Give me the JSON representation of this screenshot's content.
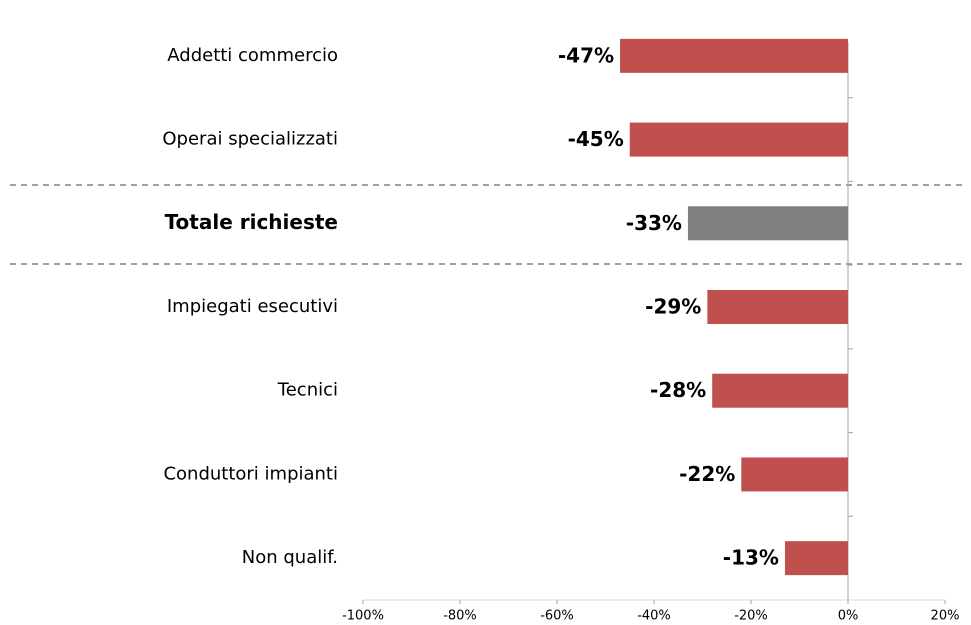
{
  "chart_data": {
    "type": "hbar",
    "categories": [
      "Addetti commercio",
      "Operai specializzati",
      "Totale richieste",
      "Impiegati esecutivi",
      "Tecnici",
      "Conduttori impianti",
      "Non qualif."
    ],
    "values": [
      -47,
      -45,
      -33,
      -29,
      -28,
      -22,
      -13
    ],
    "value_labels": [
      "-47%",
      "-45%",
      "-33%",
      "-29%",
      "-28%",
      "-22%",
      "-13%"
    ],
    "colors": [
      "#c0504d",
      "#c0504d",
      "#7f7f7f",
      "#c0504d",
      "#c0504d",
      "#c0504d",
      "#c0504d"
    ],
    "highlight_color": "#7f7f7f",
    "xlim": [
      -100,
      20
    ],
    "xticks": [
      {
        "value": -100,
        "label": "-100%"
      },
      {
        "value": -80,
        "label": "-80%"
      },
      {
        "value": -60,
        "label": "-60%"
      },
      {
        "value": -40,
        "label": "-40%"
      },
      {
        "value": -20,
        "label": "-20%"
      },
      {
        "value": 0,
        "label": "0%"
      },
      {
        "value": 20,
        "label": "20%"
      }
    ]
  }
}
